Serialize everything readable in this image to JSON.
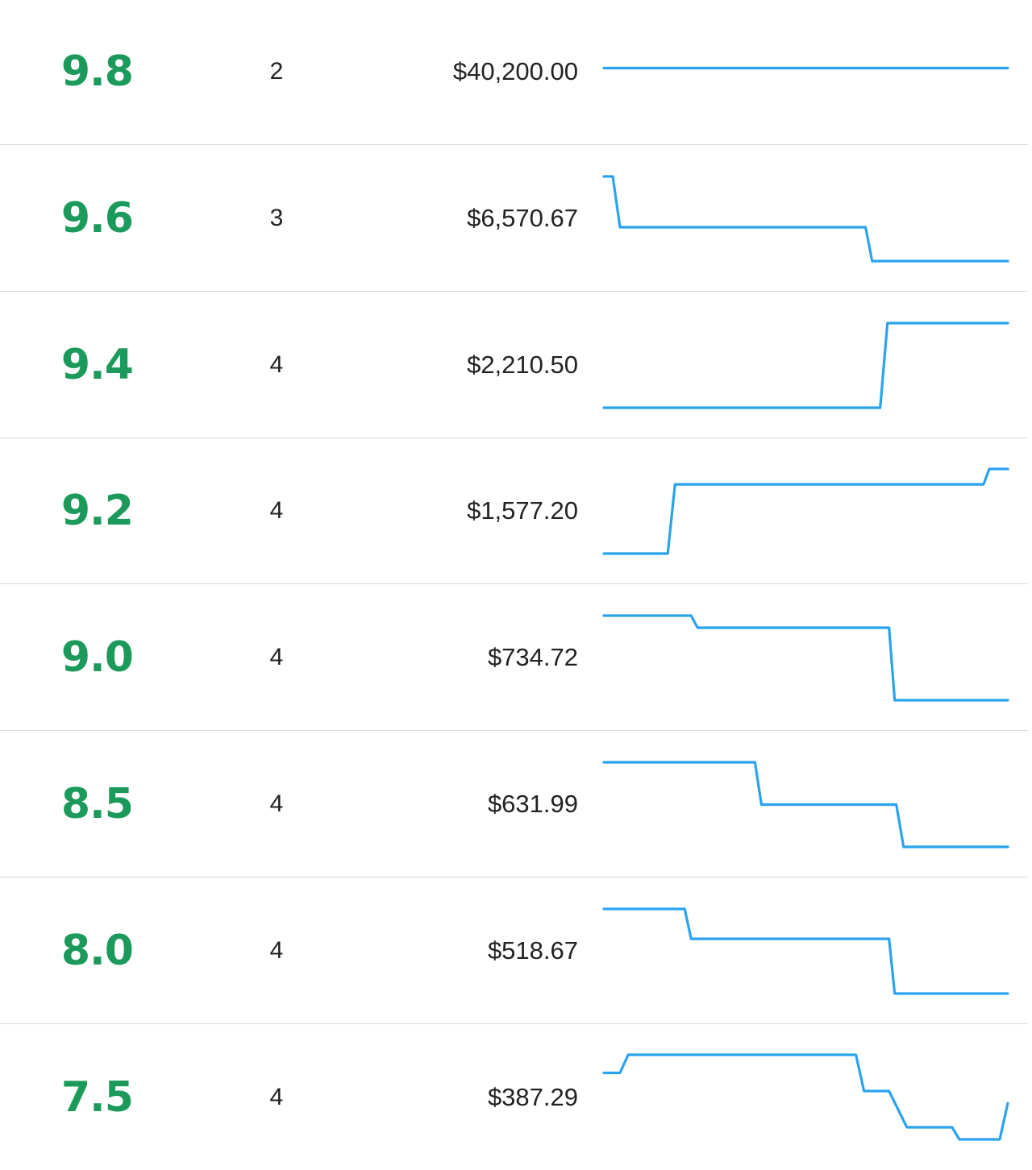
{
  "colors": {
    "grade": "#1b9a5b",
    "sparkline": "#2aa3ef",
    "divider": "#d6d8de"
  },
  "rows": [
    {
      "grade": "9.8",
      "count": "2",
      "price": "$40,200.00",
      "trend": [
        [
          0,
          40200
        ],
        [
          1,
          40200
        ]
      ]
    },
    {
      "grade": "9.6",
      "count": "3",
      "price": "$6,570.67",
      "trend": [
        [
          0.0,
          7050
        ],
        [
          0.022,
          7050
        ],
        [
          0.04,
          6720
        ],
        [
          0.648,
          6720
        ],
        [
          0.664,
          6500
        ],
        [
          1,
          6500
        ]
      ]
    },
    {
      "grade": "9.4",
      "count": "4",
      "price": "$2,210.50",
      "trend": [
        [
          0,
          2100
        ],
        [
          0.684,
          2100
        ],
        [
          0.702,
          2340
        ],
        [
          1,
          2340
        ]
      ]
    },
    {
      "grade": "9.2",
      "count": "4",
      "price": "$1,577.20",
      "trend": [
        [
          0,
          1500
        ],
        [
          0.158,
          1500
        ],
        [
          0.176,
          1590
        ],
        [
          0.94,
          1590
        ],
        [
          0.954,
          1610
        ],
        [
          1,
          1610
        ]
      ]
    },
    {
      "grade": "9.0",
      "count": "4",
      "price": "$734.72",
      "trend": [
        [
          0,
          770
        ],
        [
          0.216,
          770
        ],
        [
          0.232,
          760
        ],
        [
          0.706,
          760
        ],
        [
          0.72,
          700
        ],
        [
          1,
          700
        ]
      ]
    },
    {
      "grade": "8.5",
      "count": "4",
      "price": "$631.99",
      "trend": [
        [
          0,
          660
        ],
        [
          0.374,
          660
        ],
        [
          0.39,
          630
        ],
        [
          0.724,
          630
        ],
        [
          0.742,
          600
        ],
        [
          1,
          600
        ]
      ]
    },
    {
      "grade": "8.0",
      "count": "4",
      "price": "$518.67",
      "trend": [
        [
          0,
          560
        ],
        [
          0.2,
          560
        ],
        [
          0.216,
          530
        ],
        [
          0.706,
          530
        ],
        [
          0.72,
          475
        ],
        [
          1,
          475
        ]
      ]
    },
    {
      "grade": "7.5",
      "count": "4",
      "price": "$387.29",
      "trend": [
        [
          0,
          405
        ],
        [
          0.04,
          405
        ],
        [
          0.06,
          420
        ],
        [
          0.624,
          420
        ],
        [
          0.644,
          390
        ],
        [
          0.706,
          390
        ],
        [
          0.75,
          360
        ],
        [
          0.862,
          360
        ],
        [
          0.88,
          350
        ],
        [
          0.98,
          350
        ],
        [
          1,
          380
        ]
      ]
    }
  ]
}
